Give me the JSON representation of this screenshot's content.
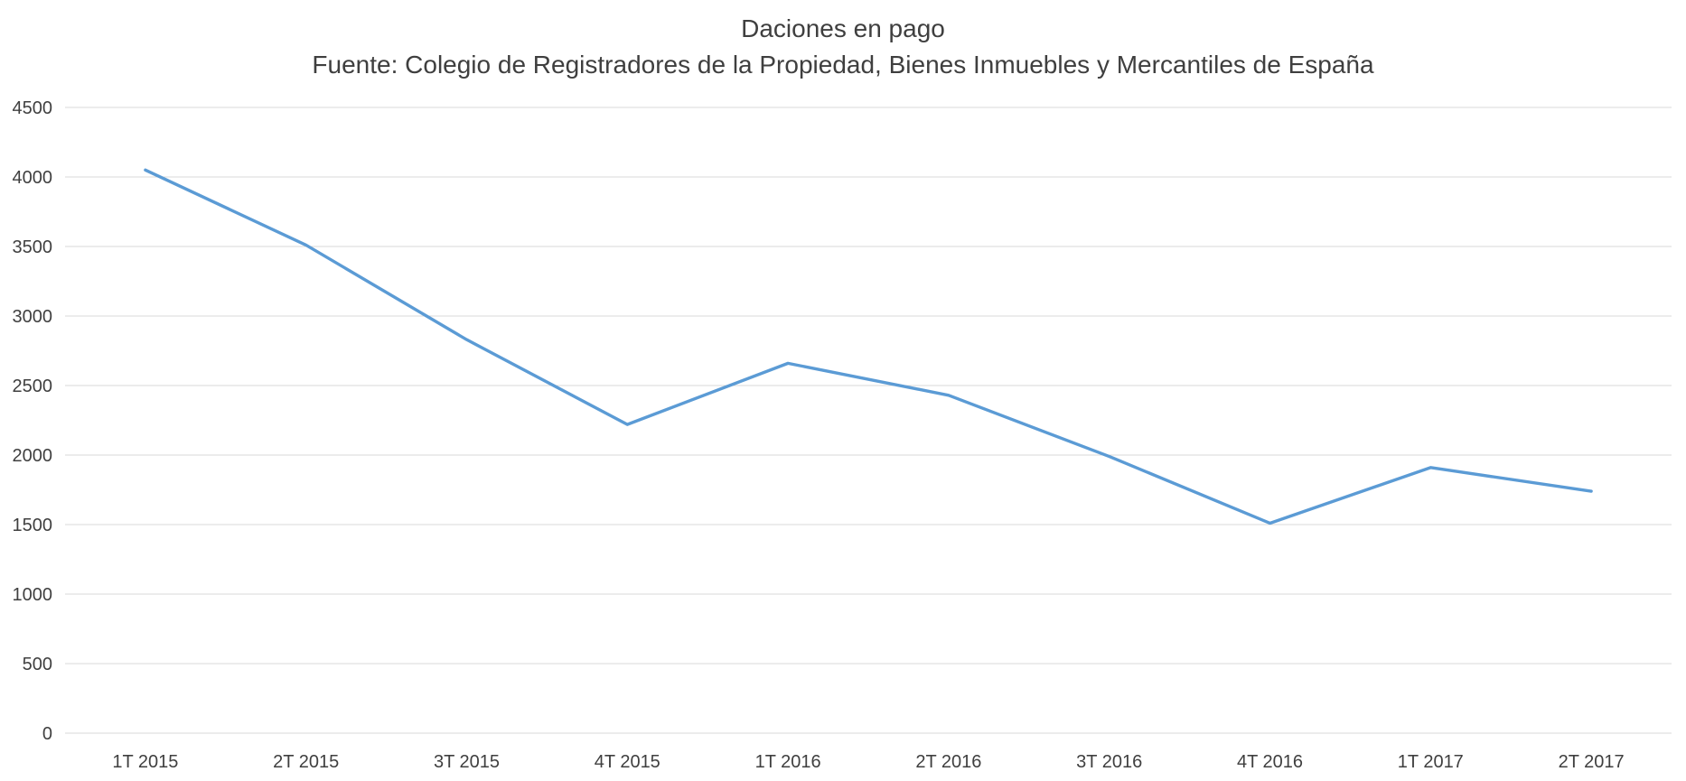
{
  "chart_data": {
    "type": "line",
    "title": "Daciones en pago",
    "subtitle": "Fuente: Colegio de Registradores de la Propiedad, Bienes Inmuebles y Mercantiles de España",
    "categories": [
      "1T 2015",
      "2T 2015",
      "3T 2015",
      "4T 2015",
      "1T 2016",
      "2T 2016",
      "3T 2016",
      "4T 2016",
      "1T 2017",
      "2T 2017"
    ],
    "series": [
      {
        "name": "Daciones en pago",
        "values": [
          4050,
          3510,
          2830,
          2220,
          2660,
          2430,
          1990,
          1510,
          1910,
          1740
        ]
      }
    ],
    "xlabel": "",
    "ylabel": "",
    "ylim": [
      0,
      4500
    ],
    "ytick_step": 500,
    "grid": true,
    "legend_position": "none",
    "line_color": "#5B9BD5",
    "grid_color": "#D9D9D9",
    "axis_color": "#D9D9D9",
    "text_color": "#3f3f3f",
    "background": "#FFFFFF"
  }
}
